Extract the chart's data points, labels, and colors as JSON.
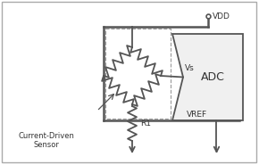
{
  "line_color": "#555555",
  "adc_label": "ADC",
  "vs_label": "Vs",
  "vref_label": "VREF",
  "vdd_label": "VDD",
  "r1_label": "R1",
  "sensor_label": "Current-Driven\nSensor"
}
